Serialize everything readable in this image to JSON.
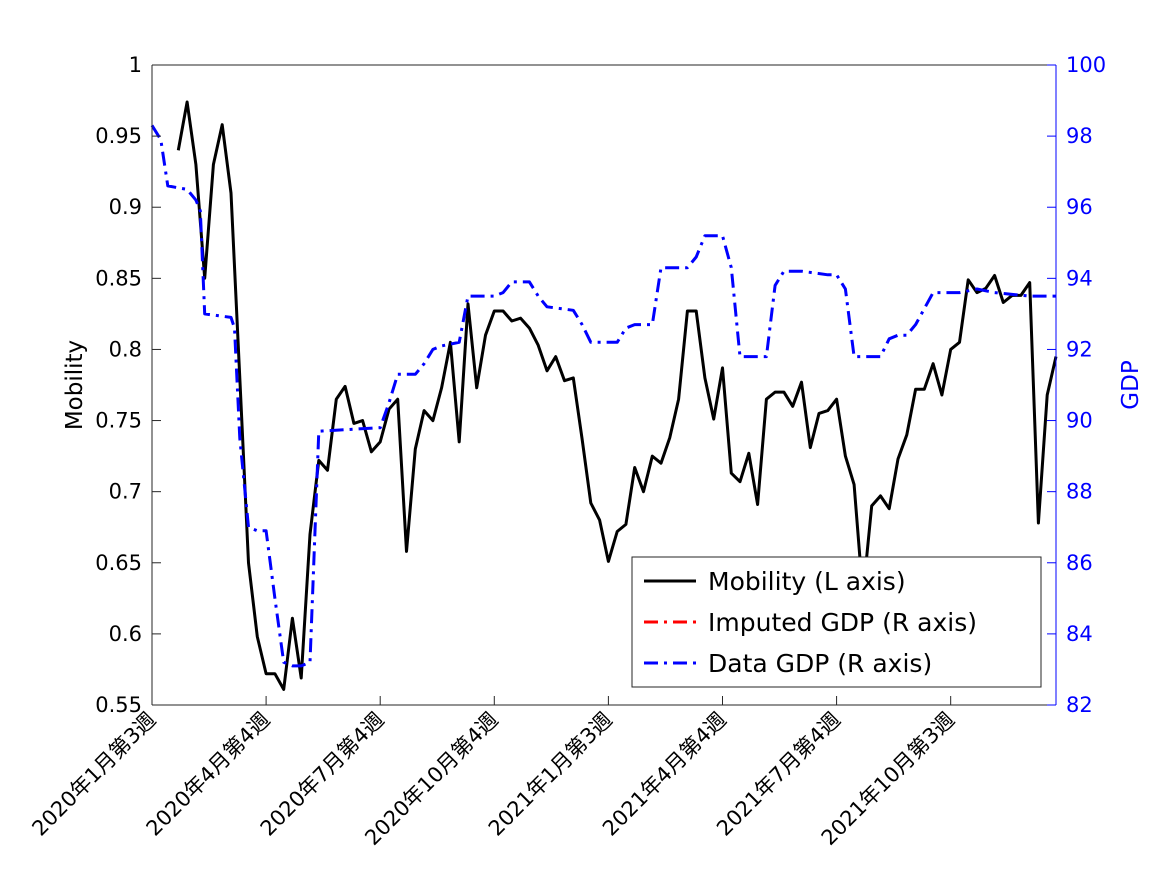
{
  "chart_data": {
    "type": "line",
    "ylabel_left": "Mobility",
    "ylabel_right": "GDP",
    "ylim_left": [
      0.55,
      1.0
    ],
    "ylim_right": [
      82,
      100
    ],
    "y_ticks_left": [
      "0.55",
      "0.6",
      "0.65",
      "0.7",
      "0.75",
      "0.8",
      "0.85",
      "0.9",
      "0.95",
      "1"
    ],
    "y_ticks_right": [
      "82",
      "84",
      "86",
      "88",
      "90",
      "92",
      "94",
      "96",
      "98",
      "100"
    ],
    "x_range_weeks": [
      0,
      103
    ],
    "x_ticks": [
      {
        "week": 0,
        "label": "2020年1月第3週"
      },
      {
        "week": 13,
        "label": "2020年4月第4週"
      },
      {
        "week": 26,
        "label": "2020年7月第4週"
      },
      {
        "week": 39,
        "label": "2020年10月第4週"
      },
      {
        "week": 52,
        "label": "2021年1月第3週"
      },
      {
        "week": 65,
        "label": "2021年4月第4週"
      },
      {
        "week": 78,
        "label": "2021年7月第4週"
      },
      {
        "week": 91,
        "label": "2021年10月第3週"
      }
    ],
    "series": [
      {
        "name": "Mobility (L axis)",
        "axis": "left",
        "color": "#000000",
        "style": "solid",
        "points": [
          [
            3,
            0.94
          ],
          [
            4,
            0.974
          ],
          [
            5,
            0.93
          ],
          [
            6,
            0.85
          ],
          [
            7,
            0.93
          ],
          [
            8,
            0.958
          ],
          [
            9,
            0.91
          ],
          [
            10,
            0.78
          ],
          [
            11,
            0.65
          ],
          [
            12,
            0.598
          ],
          [
            13,
            0.572
          ],
          [
            14,
            0.572
          ],
          [
            15,
            0.561
          ],
          [
            16,
            0.611
          ],
          [
            17,
            0.569
          ],
          [
            18,
            0.67
          ],
          [
            19,
            0.722
          ],
          [
            20,
            0.715
          ],
          [
            21,
            0.765
          ],
          [
            22,
            0.774
          ],
          [
            23,
            0.748
          ],
          [
            24,
            0.75
          ],
          [
            25,
            0.728
          ],
          [
            26,
            0.735
          ],
          [
            27,
            0.758
          ],
          [
            28,
            0.765
          ],
          [
            29,
            0.658
          ],
          [
            30,
            0.73
          ],
          [
            31,
            0.757
          ],
          [
            32,
            0.75
          ],
          [
            33,
            0.773
          ],
          [
            34,
            0.805
          ],
          [
            35,
            0.735
          ],
          [
            36,
            0.832
          ],
          [
            37,
            0.773
          ],
          [
            38,
            0.81
          ],
          [
            39,
            0.827
          ],
          [
            40,
            0.827
          ],
          [
            41,
            0.82
          ],
          [
            42,
            0.822
          ],
          [
            43,
            0.815
          ],
          [
            44,
            0.803
          ],
          [
            45,
            0.785
          ],
          [
            46,
            0.795
          ],
          [
            47,
            0.778
          ],
          [
            48,
            0.78
          ],
          [
            49,
            0.737
          ],
          [
            50,
            0.692
          ],
          [
            51,
            0.68
          ],
          [
            52,
            0.651
          ],
          [
            53,
            0.672
          ],
          [
            54,
            0.677
          ],
          [
            55,
            0.717
          ],
          [
            56,
            0.7
          ],
          [
            57,
            0.725
          ],
          [
            58,
            0.72
          ],
          [
            59,
            0.738
          ],
          [
            60,
            0.765
          ],
          [
            61,
            0.827
          ],
          [
            62,
            0.827
          ],
          [
            63,
            0.78
          ],
          [
            64,
            0.751
          ],
          [
            65,
            0.787
          ],
          [
            66,
            0.713
          ],
          [
            67,
            0.707
          ],
          [
            68,
            0.727
          ],
          [
            69,
            0.691
          ],
          [
            70,
            0.765
          ],
          [
            71,
            0.77
          ],
          [
            72,
            0.77
          ],
          [
            73,
            0.76
          ],
          [
            74,
            0.777
          ],
          [
            75,
            0.731
          ],
          [
            76,
            0.755
          ],
          [
            77,
            0.757
          ],
          [
            78,
            0.765
          ],
          [
            79,
            0.725
          ],
          [
            80,
            0.705
          ],
          [
            81,
            0.627
          ],
          [
            82,
            0.69
          ],
          [
            83,
            0.697
          ],
          [
            84,
            0.688
          ],
          [
            85,
            0.723
          ],
          [
            86,
            0.74
          ],
          [
            87,
            0.772
          ],
          [
            88,
            0.772
          ],
          [
            89,
            0.79
          ],
          [
            90,
            0.768
          ],
          [
            91,
            0.8
          ],
          [
            92,
            0.805
          ],
          [
            93,
            0.849
          ],
          [
            94,
            0.84
          ],
          [
            95,
            0.843
          ],
          [
            96,
            0.852
          ],
          [
            97,
            0.833
          ],
          [
            98,
            0.838
          ],
          [
            99,
            0.838
          ],
          [
            100,
            0.847
          ],
          [
            101,
            0.678
          ],
          [
            102,
            0.768
          ],
          [
            103,
            0.795
          ]
        ]
      },
      {
        "name": "Imputed GDP (R axis)",
        "axis": "right",
        "color": "#ff0000",
        "style": "dashdot",
        "points": []
      },
      {
        "name": "Data GDP (R axis)",
        "axis": "right",
        "color": "#0000ff",
        "style": "dashdot",
        "points": [
          [
            0,
            98.3
          ],
          [
            1,
            97.9
          ],
          [
            1.8,
            96.6
          ],
          [
            4,
            96.5
          ],
          [
            5,
            96.2
          ],
          [
            5.5,
            95.9
          ],
          [
            6,
            93.0
          ],
          [
            9,
            92.9
          ],
          [
            9.4,
            92.6
          ],
          [
            10,
            89.5
          ],
          [
            11,
            87.0
          ],
          [
            12,
            86.9
          ],
          [
            13,
            86.9
          ],
          [
            14,
            85.0
          ],
          [
            15,
            83.2
          ],
          [
            16,
            83.1
          ],
          [
            17,
            83.1
          ],
          [
            18,
            83.2
          ],
          [
            19,
            89.7
          ],
          [
            26,
            89.8
          ],
          [
            27,
            90.5
          ],
          [
            28,
            91.3
          ],
          [
            30,
            91.3
          ],
          [
            31,
            91.6
          ],
          [
            32,
            92.0
          ],
          [
            33,
            92.1
          ],
          [
            35,
            92.2
          ],
          [
            36,
            93.5
          ],
          [
            38,
            93.5
          ],
          [
            39,
            93.5
          ],
          [
            40,
            93.6
          ],
          [
            41,
            93.9
          ],
          [
            43,
            93.9
          ],
          [
            44,
            93.5
          ],
          [
            45,
            93.2
          ],
          [
            48,
            93.1
          ],
          [
            49,
            92.7
          ],
          [
            50,
            92.2
          ],
          [
            53,
            92.2
          ],
          [
            54,
            92.6
          ],
          [
            55,
            92.7
          ],
          [
            57,
            92.7
          ],
          [
            58,
            94.3
          ],
          [
            61,
            94.3
          ],
          [
            62,
            94.6
          ],
          [
            63,
            95.2
          ],
          [
            65,
            95.2
          ],
          [
            66,
            94.3
          ],
          [
            67,
            91.8
          ],
          [
            70,
            91.8
          ],
          [
            71,
            93.8
          ],
          [
            72,
            94.2
          ],
          [
            74,
            94.2
          ],
          [
            77,
            94.1
          ],
          [
            78,
            94.1
          ],
          [
            79,
            93.7
          ],
          [
            80,
            91.8
          ],
          [
            83,
            91.8
          ],
          [
            84,
            92.3
          ],
          [
            85,
            92.4
          ],
          [
            86,
            92.4
          ],
          [
            87,
            92.7
          ],
          [
            89,
            93.6
          ],
          [
            92,
            93.6
          ],
          [
            94,
            93.7
          ],
          [
            96,
            93.6
          ],
          [
            100,
            93.5
          ],
          [
            103,
            93.5
          ]
        ]
      }
    ],
    "legend": {
      "entries": [
        "Mobility (L axis)",
        "Imputed GDP (R axis)",
        "Data GDP (R axis)"
      ],
      "location": "bottom-right"
    },
    "grid": false
  }
}
